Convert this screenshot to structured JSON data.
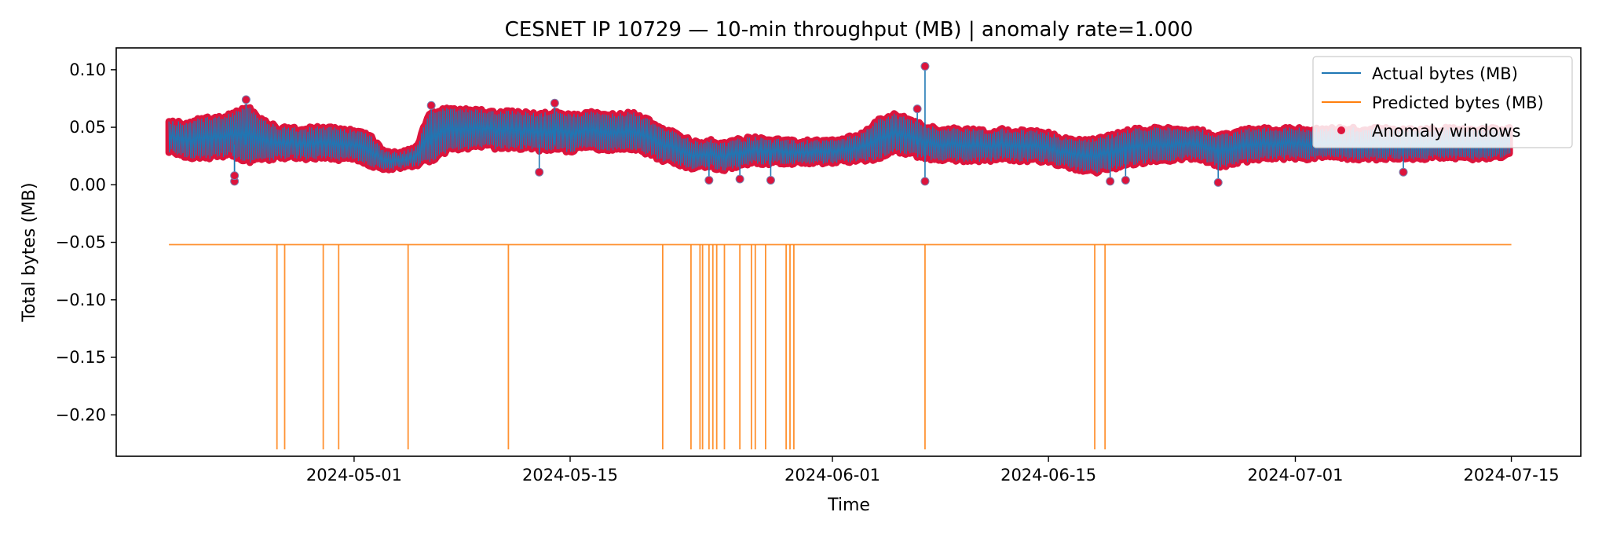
{
  "chart_data": {
    "type": "line",
    "title": "CESNET IP 10729 — 10-min throughput (MB) | anomaly rate=1.000",
    "xlabel": "Time",
    "ylabel": "Total bytes (MB)",
    "x_range": [
      "2024-04-15T14:00",
      "2024-07-19T12:00"
    ],
    "xlim_dates": [
      "2024-04-15T14:00",
      "2024-07-19T12:00"
    ],
    "ylim": [
      -0.236,
      0.119
    ],
    "xticks": [
      "2024-05-01",
      "2024-05-15",
      "2024-06-01",
      "2024-06-15",
      "2024-07-01",
      "2024-07-15"
    ],
    "yticks": [
      "0.10",
      "0.05",
      "0.00",
      "−0.05",
      "−0.10",
      "−0.15",
      "−0.20"
    ],
    "ytick_values": [
      0.1,
      0.05,
      0.0,
      -0.05,
      -0.1,
      -0.15,
      -0.2
    ],
    "grid": false,
    "legend_position": "top-right",
    "legend": [
      "Actual bytes (MB)",
      "Predicted bytes (MB)",
      "Anomaly windows"
    ],
    "series": [
      {
        "name": "Actual bytes (MB)",
        "color": "#1f77b4",
        "kind": "line",
        "x": [
          "2024-04-19",
          "2024-04-20",
          "2024-04-21",
          "2024-04-22",
          "2024-04-23",
          "2024-04-24",
          "2024-04-25",
          "2024-04-26",
          "2024-04-27",
          "2024-04-28",
          "2024-04-29",
          "2024-04-30",
          "2024-05-01",
          "2024-05-02",
          "2024-05-03",
          "2024-05-04",
          "2024-05-05",
          "2024-05-06",
          "2024-05-07",
          "2024-05-08",
          "2024-05-09",
          "2024-05-10",
          "2024-05-11",
          "2024-05-12",
          "2024-05-13",
          "2024-05-14",
          "2024-05-15",
          "2024-05-16",
          "2024-05-17",
          "2024-05-18",
          "2024-05-19",
          "2024-05-20",
          "2024-05-21",
          "2024-05-22",
          "2024-05-23",
          "2024-05-24",
          "2024-05-25",
          "2024-05-26",
          "2024-05-27",
          "2024-05-28",
          "2024-05-29",
          "2024-05-30",
          "2024-05-31",
          "2024-06-01",
          "2024-06-02",
          "2024-06-03",
          "2024-06-04",
          "2024-06-05",
          "2024-06-06",
          "2024-06-07",
          "2024-06-08",
          "2024-06-09",
          "2024-06-10",
          "2024-06-11",
          "2024-06-12",
          "2024-06-13",
          "2024-06-14",
          "2024-06-15",
          "2024-06-16",
          "2024-06-17",
          "2024-06-18",
          "2024-06-19",
          "2024-06-20",
          "2024-06-21",
          "2024-06-22",
          "2024-06-23",
          "2024-06-24",
          "2024-06-25",
          "2024-06-26",
          "2024-06-27",
          "2024-06-28",
          "2024-06-29",
          "2024-06-30",
          "2024-07-01",
          "2024-07-02",
          "2024-07-03",
          "2024-07-04",
          "2024-07-05",
          "2024-07-06",
          "2024-07-07",
          "2024-07-08",
          "2024-07-09",
          "2024-07-10",
          "2024-07-11",
          "2024-07-12",
          "2024-07-13",
          "2024-07-14",
          "2024-07-15"
        ],
        "low": [
          0.028,
          0.024,
          0.021,
          0.023,
          0.025,
          0.018,
          0.02,
          0.022,
          0.023,
          0.021,
          0.022,
          0.02,
          0.021,
          0.016,
          0.012,
          0.014,
          0.016,
          0.02,
          0.028,
          0.03,
          0.032,
          0.031,
          0.03,
          0.031,
          0.029,
          0.03,
          0.028,
          0.031,
          0.03,
          0.029,
          0.03,
          0.026,
          0.02,
          0.016,
          0.012,
          0.014,
          0.012,
          0.015,
          0.018,
          0.017,
          0.018,
          0.017,
          0.018,
          0.018,
          0.019,
          0.02,
          0.022,
          0.028,
          0.025,
          0.022,
          0.021,
          0.02,
          0.02,
          0.02,
          0.021,
          0.02,
          0.02,
          0.018,
          0.015,
          0.012,
          0.01,
          0.012,
          0.016,
          0.018,
          0.02,
          0.02,
          0.022,
          0.021,
          0.014,
          0.017,
          0.02,
          0.022,
          0.022,
          0.022,
          0.021,
          0.022,
          0.022,
          0.02,
          0.021,
          0.022,
          0.022,
          0.021,
          0.022,
          0.022,
          0.021,
          0.022,
          0.023,
          0.024
        ],
        "high": [
          0.056,
          0.055,
          0.058,
          0.06,
          0.062,
          0.07,
          0.058,
          0.052,
          0.05,
          0.05,
          0.052,
          0.05,
          0.048,
          0.044,
          0.03,
          0.029,
          0.034,
          0.066,
          0.068,
          0.067,
          0.066,
          0.064,
          0.065,
          0.064,
          0.062,
          0.066,
          0.062,
          0.064,
          0.063,
          0.062,
          0.064,
          0.058,
          0.05,
          0.046,
          0.038,
          0.04,
          0.037,
          0.041,
          0.042,
          0.04,
          0.04,
          0.039,
          0.04,
          0.04,
          0.042,
          0.046,
          0.058,
          0.062,
          0.058,
          0.052,
          0.05,
          0.05,
          0.049,
          0.048,
          0.049,
          0.048,
          0.048,
          0.046,
          0.042,
          0.04,
          0.04,
          0.044,
          0.048,
          0.05,
          0.05,
          0.05,
          0.05,
          0.048,
          0.044,
          0.046,
          0.05,
          0.05,
          0.05,
          0.05,
          0.049,
          0.05,
          0.05,
          0.05,
          0.05,
          0.05,
          0.05,
          0.049,
          0.05,
          0.05,
          0.049,
          0.049,
          0.05,
          0.05
        ]
      },
      {
        "name": "Predicted bytes (MB)",
        "color": "#ff7f0e",
        "kind": "baseline_with_spikes",
        "baseline": -0.052,
        "spike_value": -0.23,
        "x_start": "2024-04-19",
        "x_end": "2024-07-15",
        "spike_dates": [
          "2024-04-26",
          "2024-04-26T12:00",
          "2024-04-29",
          "2024-04-30",
          "2024-05-04T12:00",
          "2024-05-11",
          "2024-05-21",
          "2024-05-22T20:00",
          "2024-05-23T10:00",
          "2024-05-23T14:00",
          "2024-05-24",
          "2024-05-24T06:00",
          "2024-05-24T12:00",
          "2024-05-25",
          "2024-05-26",
          "2024-05-26T18:00",
          "2024-05-27",
          "2024-05-27T16:00",
          "2024-05-29",
          "2024-05-29T06:00",
          "2024-05-29T12:00",
          "2024-06-07",
          "2024-06-18",
          "2024-06-18T16:00"
        ]
      },
      {
        "name": "Anomaly windows",
        "color": "#dc143c",
        "kind": "scatter",
        "outliers": [
          {
            "x": "2024-04-23T06:00",
            "y": 0.003
          },
          {
            "x": "2024-04-23T06:00",
            "y": 0.008
          },
          {
            "x": "2024-04-24",
            "y": 0.074
          },
          {
            "x": "2024-05-06",
            "y": 0.069
          },
          {
            "x": "2024-05-14",
            "y": 0.071
          },
          {
            "x": "2024-05-13",
            "y": 0.011
          },
          {
            "x": "2024-05-24",
            "y": 0.004
          },
          {
            "x": "2024-05-26",
            "y": 0.005
          },
          {
            "x": "2024-05-28",
            "y": 0.004
          },
          {
            "x": "2024-06-07",
            "y": 0.103
          },
          {
            "x": "2024-06-07",
            "y": 0.003
          },
          {
            "x": "2024-06-06T12:00",
            "y": 0.066
          },
          {
            "x": "2024-06-19",
            "y": 0.003
          },
          {
            "x": "2024-06-20",
            "y": 0.004
          },
          {
            "x": "2024-06-26",
            "y": 0.002
          },
          {
            "x": "2024-07-08",
            "y": 0.011
          }
        ]
      }
    ]
  }
}
